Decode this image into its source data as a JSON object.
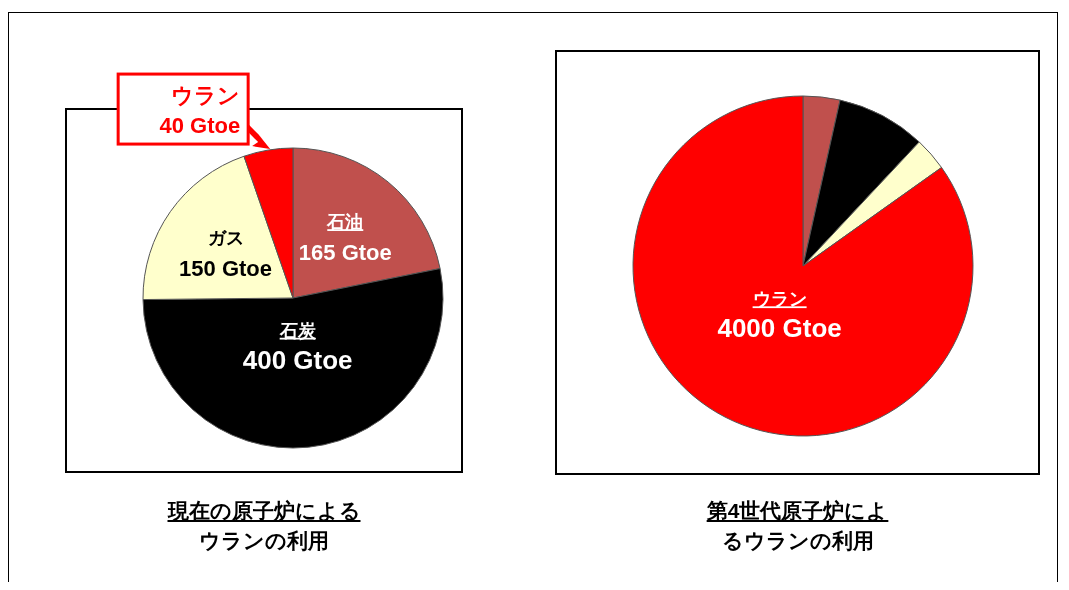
{
  "chart_data": [
    {
      "type": "pie",
      "title": "現在の原子炉によるウランの利用",
      "categories": [
        "石油",
        "石炭",
        "ガス",
        "ウラン"
      ],
      "values": [
        165,
        400,
        150,
        40
      ],
      "colors": [
        "#c0504d",
        "#000000",
        "#ffffcc",
        "#ff0000"
      ],
      "value_labels": [
        "165 Gtoe",
        "400 Gtoe",
        "150 Gtoe",
        "40 Gtoe"
      ]
    },
    {
      "type": "pie",
      "title": "第4世代原子炉によるウランの利用",
      "categories": [
        null,
        null,
        null,
        "ウラン"
      ],
      "values": [
        165,
        400,
        150,
        4000
      ],
      "colors": [
        "#c0504d",
        "#000000",
        "#ffffcc",
        "#ff0000"
      ],
      "value_labels": [
        null,
        null,
        null,
        "4000 Gtoe"
      ]
    }
  ]
}
